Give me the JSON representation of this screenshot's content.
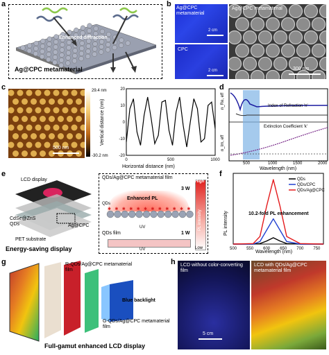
{
  "panels": {
    "a": {
      "letter": "a",
      "arrow_text": "Enhanced diffraction",
      "caption": "Ag@CPC metamaterial"
    },
    "b": {
      "letter": "b",
      "photo1_label": "Ag@CPC metamaterial",
      "photo1_scale": "2 cm",
      "photo2_label": "CPC",
      "photo2_scale": "2 cm",
      "sem_label": "Ag@CPC metamaterial",
      "sem_scale": "300 nm"
    },
    "c": {
      "letter": "c",
      "afm_scale": "500 nm",
      "colorbar_max": "29.4 nm",
      "colorbar_min": "-30.2 nm",
      "xlabel": "Horizontal distance (nm)",
      "ylabel": "Vertical distance (nm)",
      "xticks": [
        "0",
        "500",
        "1000"
      ],
      "yticks": [
        "20",
        "10",
        "0",
        "-10",
        "-20"
      ]
    },
    "d": {
      "letter": "d",
      "ylabel_top": "n_Re, eff",
      "ylabel_bottom": "n_Im, eff",
      "label_n": "Index of Refraction 'n'",
      "label_k": "Extinction Coefficient 'k'",
      "xlabel": "Wavelength (nm)",
      "xticks": [
        "500",
        "1000",
        "1500",
        "2000"
      ]
    },
    "e": {
      "letter": "e",
      "lcd_display": "LCD display",
      "qds": "CdSe@ZnS QDs",
      "agcpc": "Ag@CPC",
      "pet": "PET substrate",
      "caption": "Energy-saving display",
      "film_top": "QDs/Ag@CPC metamaterial film",
      "power_top": "3 W",
      "enhanced_pl": "Enhanced PL",
      "qds_small": "QDs",
      "uv1": "UV",
      "film_bottom": "QDs film",
      "power_bottom": "1 W",
      "uv2": "UV",
      "bar_high": "High",
      "bar_low": "Low",
      "bar_label": "PL intensity"
    },
    "f": {
      "letter": "f",
      "ylabel": "PL intensity",
      "xlabel": "Wavelength (nm)",
      "xticks": [
        "500",
        "550",
        "600",
        "650",
        "700",
        "750"
      ],
      "annotation": "10.2-fold PL enhancement",
      "legend": [
        "QDs",
        "QDs/CPC",
        "QDs/Ag@CPC"
      ]
    },
    "g": {
      "letter": "g",
      "red_label": "R-QDs/Ag@CPC metamaterial film",
      "green_label": "G-QDs/Ag@CPC metamaterial film",
      "blue_label": "Blue backlight",
      "caption": "Full-gamut enhanced LCD display"
    },
    "h": {
      "letter": "h",
      "left_label": "LCD without color-converting film",
      "right_label": "LCD with QDs/Ag@CPC metamaterial film",
      "scale": "5 cm"
    }
  },
  "chart_data": [
    {
      "type": "line",
      "panel": "c",
      "xlabel": "Horizontal distance (nm)",
      "ylabel": "Vertical distance (nm)",
      "xlim": [
        0,
        1000
      ],
      "ylim": [
        -20,
        20
      ],
      "x": [
        0,
        40,
        80,
        120,
        160,
        200,
        240,
        280,
        320,
        360,
        400,
        440,
        480,
        520,
        560,
        600,
        640,
        680,
        720,
        760,
        800,
        840,
        880,
        920,
        960,
        1000
      ],
      "y": [
        -12,
        8,
        14,
        -6,
        -14,
        4,
        15,
        2,
        -13,
        -8,
        12,
        13,
        -5,
        -14,
        6,
        15,
        -2,
        -15,
        0,
        14,
        8,
        -12,
        -10,
        10,
        12,
        -4
      ]
    },
    {
      "type": "line",
      "panel": "f",
      "xlabel": "Wavelength (nm)",
      "ylabel": "PL intensity",
      "xlim": [
        500,
        770
      ],
      "series": [
        {
          "name": "QDs",
          "color": "#000000",
          "x": [
            500,
            560,
            580,
            600,
            620,
            640,
            660,
            700,
            770
          ],
          "y": [
            0,
            0,
            0.02,
            0.12,
            0.25,
            0.12,
            0.02,
            0,
            0
          ]
        },
        {
          "name": "QDs/CPC",
          "color": "#1f3fd0",
          "x": [
            500,
            560,
            580,
            600,
            620,
            640,
            660,
            700,
            770
          ],
          "y": [
            0,
            0,
            0.1,
            0.55,
            1.0,
            0.55,
            0.1,
            0,
            0
          ]
        },
        {
          "name": "QDs/Ag@CPC",
          "color": "#e41a1c",
          "x": [
            500,
            560,
            580,
            600,
            620,
            640,
            660,
            700,
            770
          ],
          "y": [
            0,
            0.02,
            0.3,
            1.5,
            2.55,
            1.5,
            0.3,
            0.02,
            0
          ]
        }
      ]
    }
  ]
}
